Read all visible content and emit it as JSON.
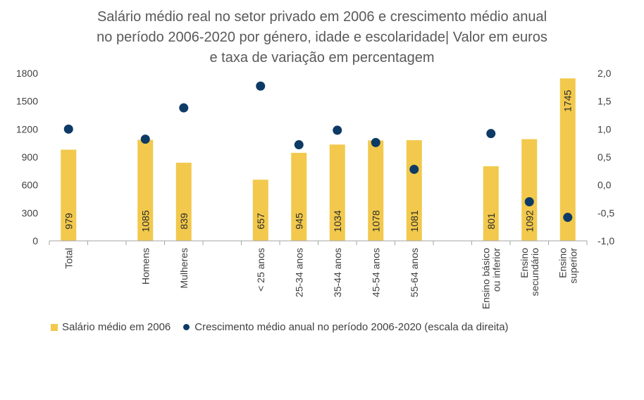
{
  "chart_data": {
    "type": "bar+scatter",
    "title_lines": [
      "Salário médio real no setor privado em 2006 e crescimento médio anual",
      "no período 2006-2020 por género, idade e escolaridade| Valor em euros",
      "e taxa de variação em percentagem"
    ],
    "categories": [
      [
        "Total"
      ],
      [
        ""
      ],
      [
        "Homens"
      ],
      [
        "Mulheres"
      ],
      [
        ""
      ],
      [
        "< 25 anos"
      ],
      [
        "25-34 anos"
      ],
      [
        "35-44 anos"
      ],
      [
        "45-54 anos"
      ],
      [
        "55-64 anos"
      ],
      [
        ""
      ],
      [
        "Ensino básico",
        "ou inferior"
      ],
      [
        "Ensino",
        "secundário"
      ],
      [
        "Ensino",
        "superior"
      ]
    ],
    "series": [
      {
        "name": "Salário médio em 2006",
        "axis": "left",
        "values": [
          979,
          null,
          1085,
          839,
          null,
          657,
          945,
          1034,
          1078,
          1081,
          null,
          801,
          1092,
          1745
        ],
        "labels": [
          "979",
          "",
          "1085",
          "839",
          "",
          "657",
          "945",
          "1034",
          "1078",
          "1081",
          "",
          "801",
          "1092",
          "1745"
        ],
        "color": "#F2C94C"
      },
      {
        "name": "Crescimento médio anual  no período 2006-2020 (escala da direita)",
        "axis": "right",
        "values": [
          1.0,
          null,
          0.82,
          1.38,
          null,
          1.77,
          0.72,
          0.98,
          0.76,
          0.28,
          null,
          0.92,
          -0.3,
          -0.58
        ],
        "color": "#0E3A66"
      }
    ],
    "y_left": {
      "min": 0,
      "max": 1800,
      "ticks": [
        0,
        300,
        600,
        900,
        1200,
        1500,
        1800
      ],
      "tick_labels": [
        "0",
        "300",
        "600",
        "900",
        "1200",
        "1500",
        "1800"
      ]
    },
    "y_right": {
      "min": -1.0,
      "max": 2.0,
      "ticks": [
        -1.0,
        -0.5,
        0.0,
        0.5,
        1.0,
        1.5,
        2.0
      ],
      "tick_labels": [
        "-1,0",
        "-0,5",
        "0,0",
        "0,5",
        "1,0",
        "1,5",
        "2,0"
      ]
    },
    "legend": {
      "bar_label": "Salário médio em 2006",
      "dot_label": "Crescimento médio anual  no período 2006-2020 (escala da direita)",
      "position": "bottom-left"
    }
  }
}
